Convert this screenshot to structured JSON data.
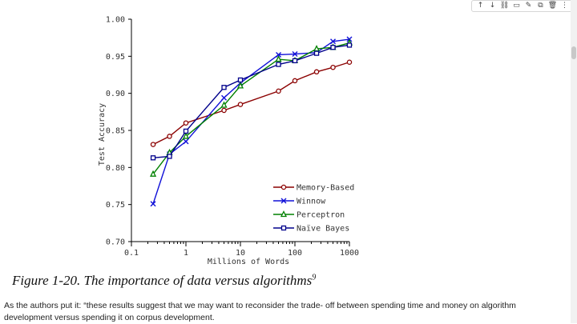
{
  "toolbar": {
    "buttons": [
      {
        "name": "move-up",
        "glyph": "↑"
      },
      {
        "name": "move-down",
        "glyph": "↓"
      },
      {
        "name": "link",
        "glyph": "⛓"
      },
      {
        "name": "comment",
        "glyph": "▭"
      },
      {
        "name": "edit",
        "glyph": "✎"
      },
      {
        "name": "copy",
        "glyph": "⧉"
      },
      {
        "name": "delete",
        "glyph": "🗑"
      },
      {
        "name": "more",
        "glyph": "⋮"
      }
    ]
  },
  "caption": {
    "text": "Figure 1-20. The importance of data versus algorithms",
    "footnote": "9"
  },
  "paragraph": "As the authors put it: “these results suggest that we may want to reconsider the trade- off between spending time and money on algorithm development versus spending it on corpus development.",
  "colors": {
    "memory": "#8b0000",
    "winnow": "#1010d8",
    "perceptron": "#008000",
    "naive": "#00008b"
  },
  "chart_data": {
    "type": "line",
    "title": "",
    "xlabel": "Millions of Words",
    "ylabel": "Test Accuracy",
    "xscale": "log",
    "xlim": [
      0.1,
      1000
    ],
    "ylim": [
      0.7,
      1.0
    ],
    "xticks": [
      0.1,
      1,
      10,
      100,
      1000
    ],
    "xtick_labels": [
      "0.1",
      "1",
      "10",
      "100",
      "1000"
    ],
    "yticks": [
      0.7,
      0.75,
      0.8,
      0.85,
      0.9,
      0.95,
      1.0
    ],
    "ytick_labels": [
      "0.70",
      "0.75",
      "0.80",
      "0.85",
      "0.90",
      "0.95",
      "1.00"
    ],
    "legend_position": "lower-right",
    "series": [
      {
        "name": "Memory-Based",
        "color_key": "memory",
        "marker": "circle",
        "x": [
          0.25,
          0.5,
          1,
          5,
          10,
          50,
          100,
          250,
          500,
          1000
        ],
        "y": [
          0.831,
          0.842,
          0.86,
          0.877,
          0.885,
          0.903,
          0.917,
          0.929,
          0.935,
          0.942
        ]
      },
      {
        "name": "Winnow",
        "color_key": "winnow",
        "marker": "x",
        "x": [
          0.25,
          0.5,
          1,
          5,
          10,
          50,
          100,
          250,
          500,
          1000
        ],
        "y": [
          0.751,
          0.818,
          0.835,
          0.894,
          0.914,
          0.952,
          0.953,
          0.955,
          0.97,
          0.973
        ]
      },
      {
        "name": "Perceptron",
        "color_key": "perceptron",
        "marker": "triangle",
        "x": [
          0.25,
          0.5,
          1,
          5,
          10,
          50,
          100,
          250,
          500,
          1000
        ],
        "y": [
          0.791,
          0.82,
          0.842,
          0.884,
          0.91,
          0.946,
          0.944,
          0.96,
          0.962,
          0.968
        ]
      },
      {
        "name": "Naïve Bayes",
        "color_key": "naive",
        "marker": "square",
        "x": [
          0.25,
          0.5,
          1,
          5,
          10,
          50,
          100,
          250,
          500,
          1000
        ],
        "y": [
          0.813,
          0.815,
          0.849,
          0.908,
          0.918,
          0.939,
          0.944,
          0.954,
          0.962,
          0.965
        ]
      }
    ]
  }
}
